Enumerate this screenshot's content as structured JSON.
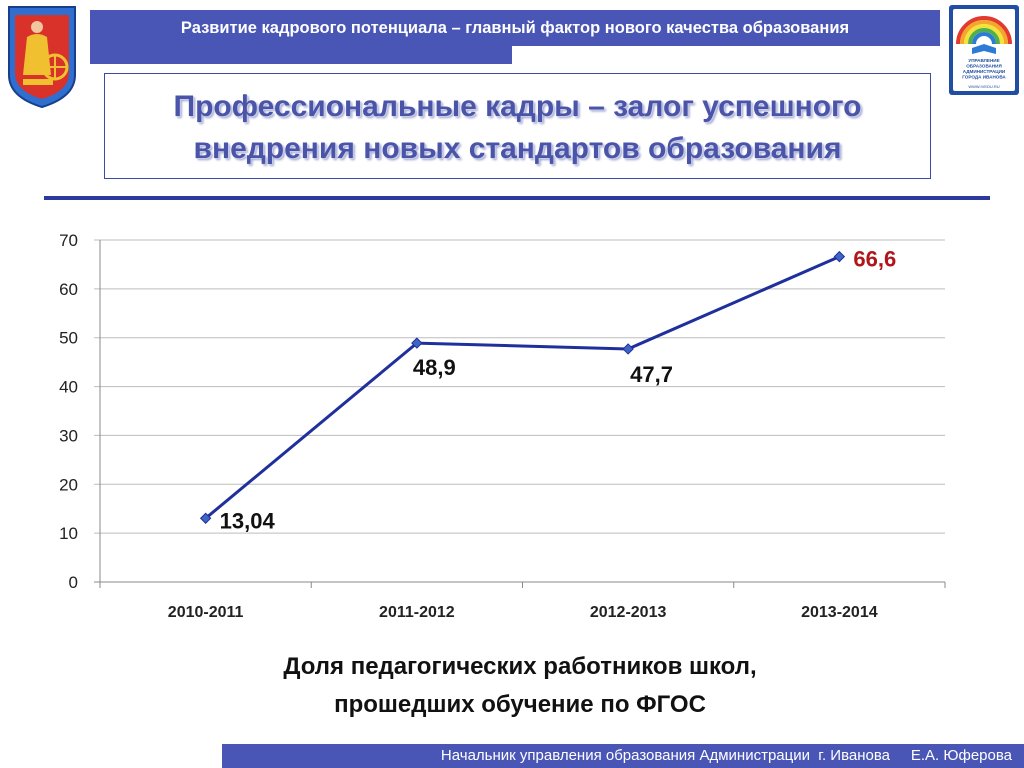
{
  "header": {
    "banner_title": "Развитие кадрового потенциала – главный фактор нового качества образования",
    "headline_line1": "Профессиональные кадры – залог успешного",
    "headline_line2": "внедрения новых стандартов образования"
  },
  "logo": {
    "line1": "УПРАВЛЕНИЕ",
    "line2": "ОБРАЗОВАНИЯ",
    "line3": "АДМИНИСТРАЦИИ",
    "line4": "ГОРОДА ИВАНОВА",
    "url": "WWW.IVEDU.RU"
  },
  "colors": {
    "brand": "#4a56b6",
    "line": "#1f2f9c",
    "marker": "#3f66c4",
    "highlight_label": "#b0151b"
  },
  "chart_data": {
    "type": "line",
    "categories": [
      "2010-2011",
      "2011-2012",
      "2012-2013",
      "2013-2014"
    ],
    "values": [
      13.04,
      48.9,
      47.7,
      66.6
    ],
    "data_labels": [
      "13,04",
      "48,9",
      "47,7",
      "66,6"
    ],
    "y_ticks": [
      "0",
      "10",
      "20",
      "30",
      "40",
      "50",
      "60",
      "70"
    ],
    "ylim": [
      0,
      70
    ],
    "grid": true,
    "legend": false,
    "title": "",
    "xlabel": "",
    "ylabel": ""
  },
  "caption": {
    "line1": "Доля педагогических работников школ,",
    "line2": "прошедших обучение по ФГОС"
  },
  "footer": {
    "text": "Начальник управления образования Администрации  г. Иванова     Е.А. Юферова"
  }
}
